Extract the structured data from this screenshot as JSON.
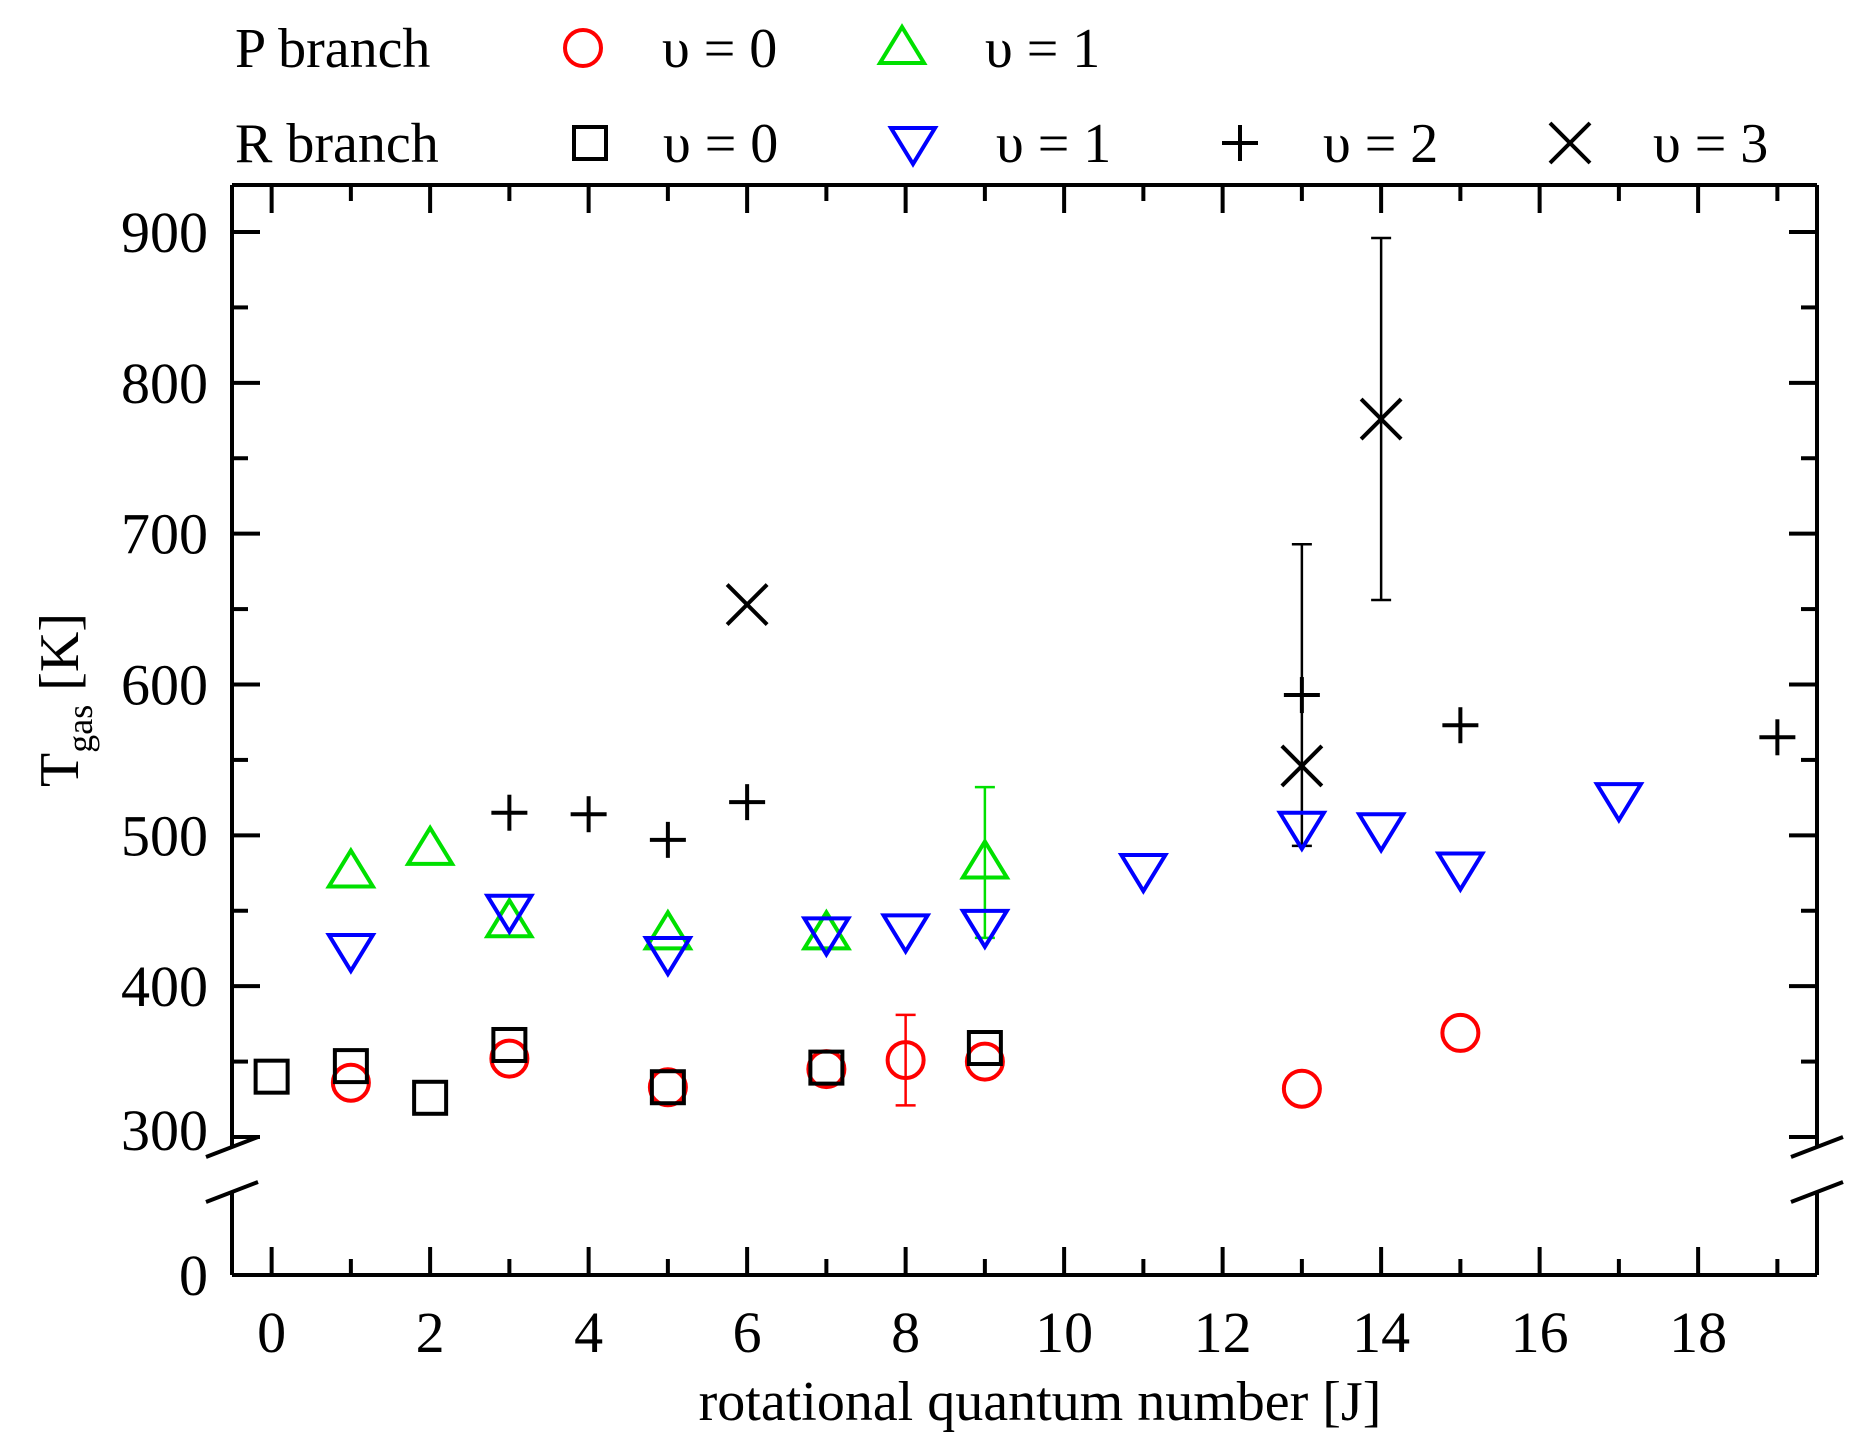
{
  "chart_data": {
    "type": "scatter",
    "xlabel": "rotational quantum number [J]",
    "ylabel_main": "T",
    "ylabel_sub": "gas",
    "ylabel_unit": "[K]",
    "xlim": [
      -0.5,
      19.5
    ],
    "x_ticks": [
      0,
      2,
      4,
      6,
      8,
      10,
      12,
      14,
      16,
      18
    ],
    "y_axis_break": [
      0,
      300
    ],
    "ylim_upper": [
      300,
      930
    ],
    "y_ticks": [
      0,
      300,
      400,
      500,
      600,
      700,
      800,
      900
    ],
    "legend_groups": [
      {
        "label": "P branch",
        "series_indices": [
          0,
          1
        ]
      },
      {
        "label": "R branch",
        "series_indices": [
          2,
          3,
          4,
          5
        ]
      }
    ],
    "series": [
      {
        "name": "υ = 0",
        "branch": "P",
        "marker": "circle",
        "color": "#ff0000",
        "points": [
          {
            "x": 1,
            "y": 336
          },
          {
            "x": 3,
            "y": 352
          },
          {
            "x": 5,
            "y": 333
          },
          {
            "x": 7,
            "y": 345
          },
          {
            "x": 8,
            "y": 351,
            "err": 30
          },
          {
            "x": 9,
            "y": 350
          },
          {
            "x": 13,
            "y": 332
          },
          {
            "x": 15,
            "y": 369
          }
        ]
      },
      {
        "name": "υ = 1",
        "branch": "P",
        "marker": "triangle-up",
        "color": "#00e000",
        "points": [
          {
            "x": 1,
            "y": 476
          },
          {
            "x": 2,
            "y": 491
          },
          {
            "x": 3,
            "y": 443
          },
          {
            "x": 5,
            "y": 435
          },
          {
            "x": 7,
            "y": 435
          },
          {
            "x": 9,
            "y": 482,
            "err": 50
          }
        ]
      },
      {
        "name": "υ = 0",
        "branch": "R",
        "marker": "square",
        "color": "#000000",
        "points": [
          {
            "x": 0,
            "y": 340
          },
          {
            "x": 1,
            "y": 347
          },
          {
            "x": 2,
            "y": 326
          },
          {
            "x": 3,
            "y": 361
          },
          {
            "x": 5,
            "y": 333
          },
          {
            "x": 7,
            "y": 346
          },
          {
            "x": 9,
            "y": 359
          }
        ]
      },
      {
        "name": "υ = 1",
        "branch": "R",
        "marker": "triangle-down",
        "color": "#0000ff",
        "points": [
          {
            "x": 1,
            "y": 424
          },
          {
            "x": 3,
            "y": 450
          },
          {
            "x": 5,
            "y": 422
          },
          {
            "x": 7,
            "y": 435
          },
          {
            "x": 8,
            "y": 437
          },
          {
            "x": 9,
            "y": 440
          },
          {
            "x": 11,
            "y": 477
          },
          {
            "x": 13,
            "y": 505
          },
          {
            "x": 14,
            "y": 504
          },
          {
            "x": 15,
            "y": 478
          },
          {
            "x": 17,
            "y": 524
          }
        ]
      },
      {
        "name": "υ = 2",
        "branch": "R",
        "marker": "plus",
        "color": "#000000",
        "points": [
          {
            "x": 3,
            "y": 515
          },
          {
            "x": 4,
            "y": 514
          },
          {
            "x": 5,
            "y": 497
          },
          {
            "x": 6,
            "y": 522
          },
          {
            "x": 13,
            "y": 593
          },
          {
            "x": 15,
            "y": 573
          },
          {
            "x": 19,
            "y": 565
          }
        ]
      },
      {
        "name": "υ = 3",
        "branch": "R",
        "marker": "cross",
        "color": "#000000",
        "points": [
          {
            "x": 6,
            "y": 653
          },
          {
            "x": 13,
            "y": 546,
            "err_low": 53,
            "err_high": 147
          },
          {
            "x": 14,
            "y": 776,
            "err": 120
          }
        ]
      }
    ]
  }
}
